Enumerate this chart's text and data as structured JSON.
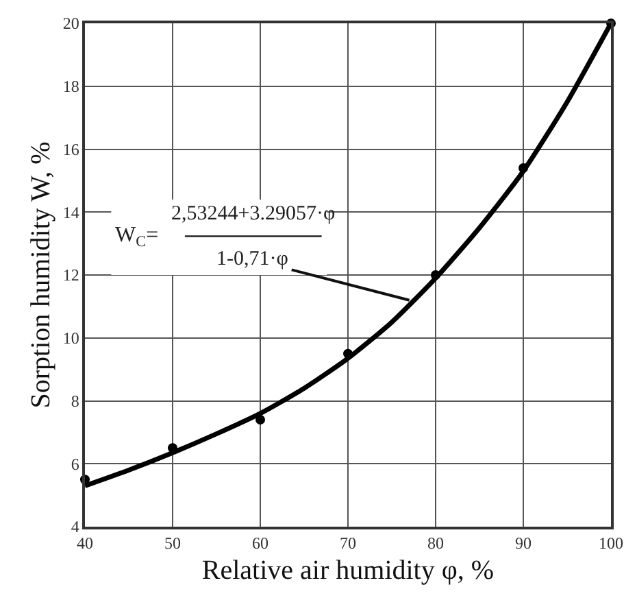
{
  "chart_data": {
    "type": "line",
    "xlabel": "Relative air humidity φ, %",
    "ylabel": "Sorption humidity W, %",
    "series": [
      {
        "color": "#000000",
        "marker": "none",
        "line_style": "solid",
        "x": [
          40,
          45,
          50,
          55,
          60,
          65,
          70,
          75,
          80,
          85,
          90,
          95,
          100
        ],
        "values": [
          5.3,
          5.8,
          6.35,
          6.95,
          7.6,
          8.4,
          9.35,
          10.5,
          11.9,
          13.5,
          15.3,
          17.5,
          20.0
        ]
      },
      {
        "type": "scatter",
        "color": "#000000",
        "marker": "circle",
        "x": [
          40,
          50,
          60,
          70,
          80,
          90,
          100
        ],
        "values": [
          5.5,
          6.5,
          7.4,
          9.5,
          12.0,
          15.4,
          20.0
        ]
      }
    ],
    "xlim": [
      40,
      100
    ],
    "xticks": [
      40,
      50,
      60,
      70,
      80,
      90,
      100
    ],
    "ylim": [
      4,
      20
    ],
    "yticks": [
      4,
      6,
      8,
      10,
      12,
      14,
      16,
      18,
      20
    ],
    "grid": true,
    "annotations": [
      "W$_{C}$=",
      "2,53244+3.29057·φ",
      {
        "text": "1-0,71·φ",
        "x": 77,
        "y": 11.2
      }
    ]
  }
}
